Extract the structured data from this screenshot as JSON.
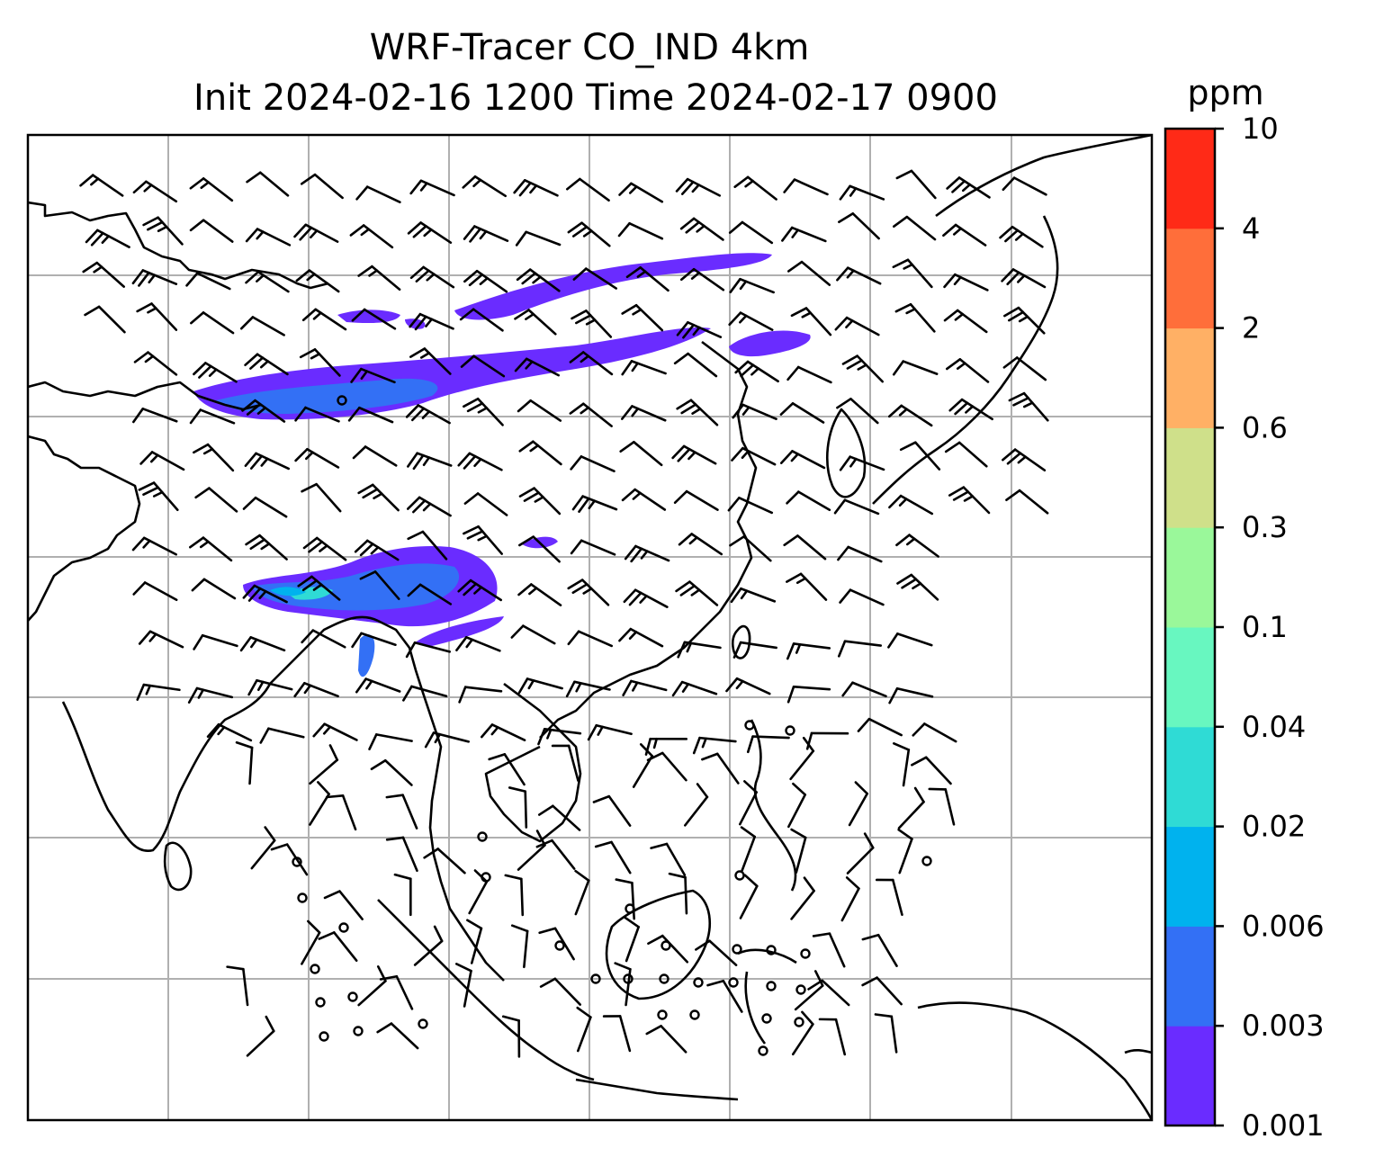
{
  "title": {
    "line1": "WRF-Tracer CO_IND 4km",
    "line2": "Init 2024-02-16 1200 Time 2024-02-17 0900"
  },
  "colorbar": {
    "unit": "ppm",
    "levels": [
      "0.001",
      "0.003",
      "0.006",
      "0.02",
      "0.04",
      "0.1",
      "0.3",
      "0.6",
      "2",
      "4",
      "10"
    ],
    "colors": [
      "#6a2cff",
      "#3370f5",
      "#00b2ee",
      "#2fdbd5",
      "#68f7c0",
      "#9af89a",
      "#cfe08a",
      "#ffb065",
      "#ff6e3a",
      "#ff2a17"
    ]
  },
  "map": {
    "gridlines": true,
    "grid_color": "#b0b0b0",
    "coastline_color": "#000000",
    "barb_color": "#000000"
  }
}
